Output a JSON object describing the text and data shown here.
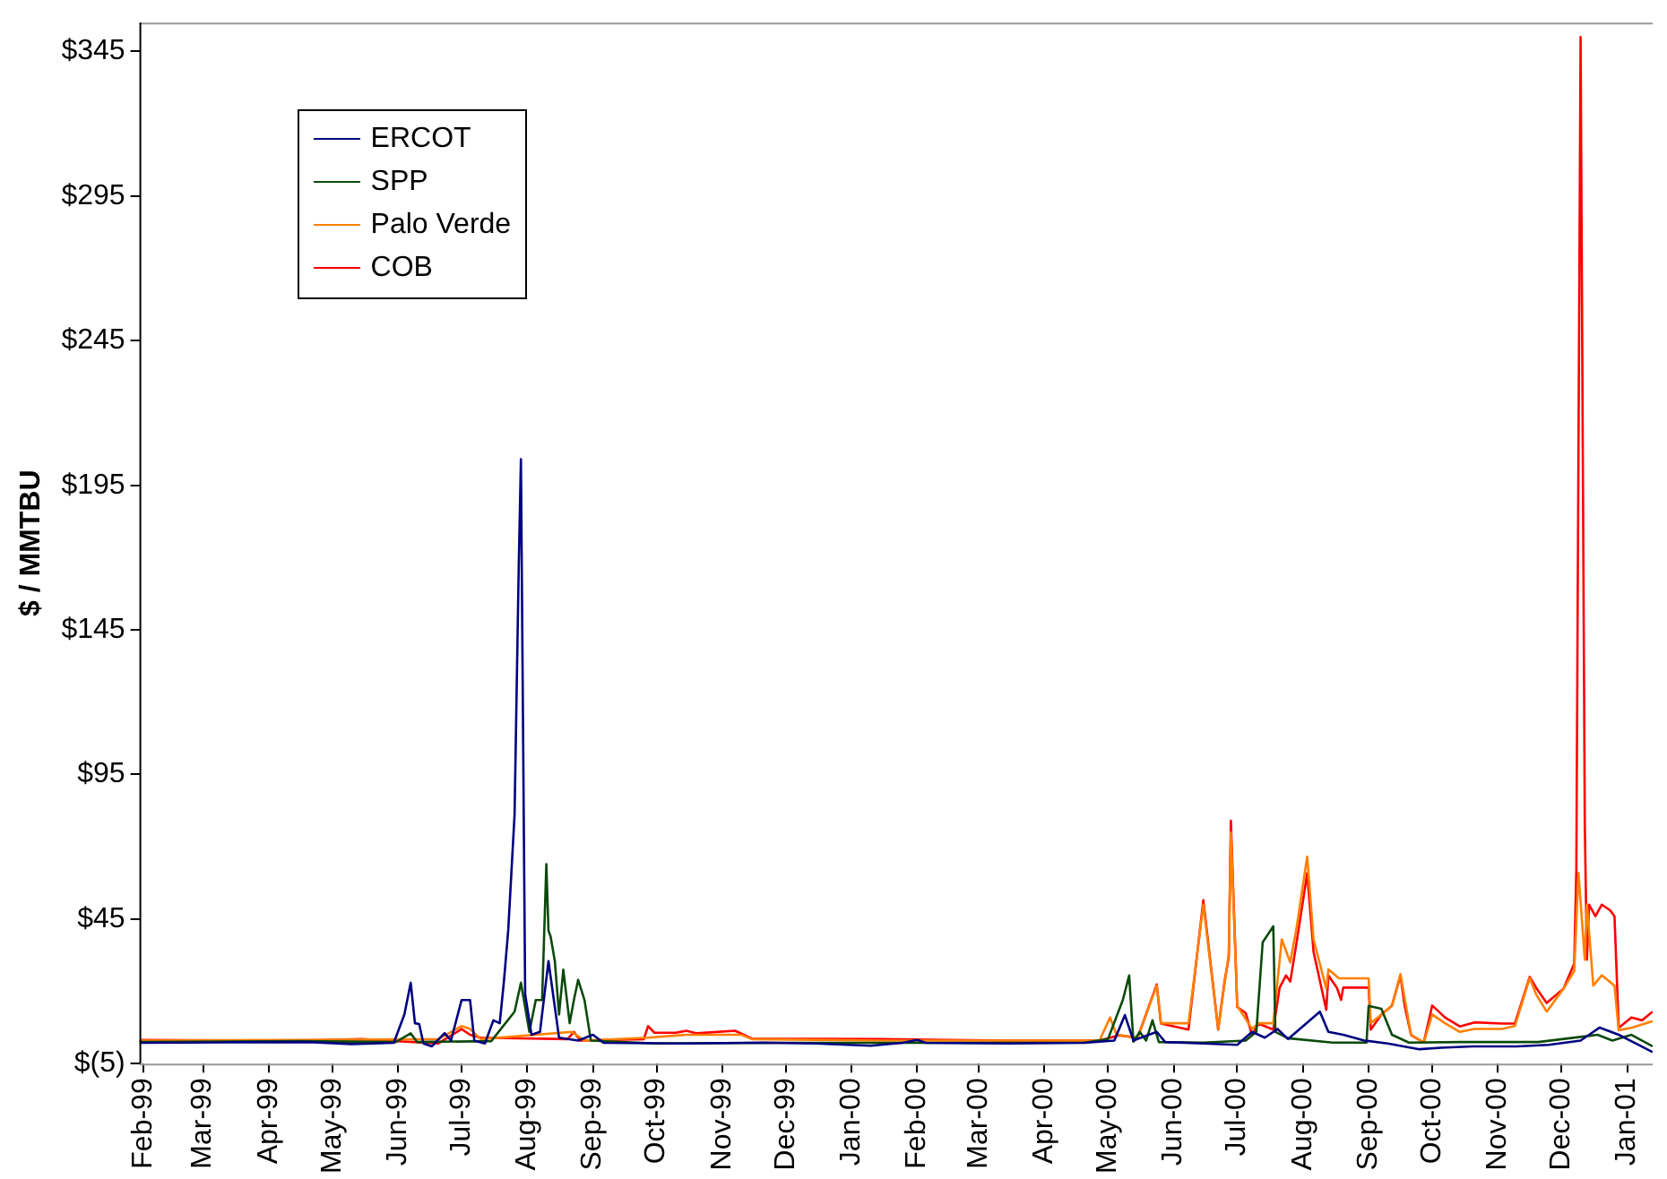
{
  "chart_data": {
    "type": "line",
    "ylabel": "$ / MMTBU",
    "legend": "top left",
    "grid": false,
    "marker": "none",
    "line_style": "solid",
    "xlim": [
      "1999-01-30",
      "2001-01-13"
    ],
    "xticks": [
      {
        "value": "1999-02-01",
        "label": "Feb-99"
      },
      {
        "value": "1999-03-01",
        "label": "Mar-99"
      },
      {
        "value": "1999-04-01",
        "label": "Apr-99"
      },
      {
        "value": "1999-05-01",
        "label": "May-99"
      },
      {
        "value": "1999-06-01",
        "label": "Jun-99"
      },
      {
        "value": "1999-07-01",
        "label": "Jul-99"
      },
      {
        "value": "1999-08-01",
        "label": "Aug-99"
      },
      {
        "value": "1999-09-01",
        "label": "Sep-99"
      },
      {
        "value": "1999-10-01",
        "label": "Oct-99"
      },
      {
        "value": "1999-11-01",
        "label": "Nov-99"
      },
      {
        "value": "1999-12-01",
        "label": "Dec-99"
      },
      {
        "value": "2000-01-01",
        "label": "Jan-00"
      },
      {
        "value": "2000-02-01",
        "label": "Feb-00"
      },
      {
        "value": "2000-03-01",
        "label": "Mar-00"
      },
      {
        "value": "2000-04-01",
        "label": "Apr-00"
      },
      {
        "value": "2000-05-01",
        "label": "May-00"
      },
      {
        "value": "2000-06-01",
        "label": "Jun-00"
      },
      {
        "value": "2000-07-01",
        "label": "Jul-00"
      },
      {
        "value": "2000-08-01",
        "label": "Aug-00"
      },
      {
        "value": "2000-09-01",
        "label": "Sep-00"
      },
      {
        "value": "2000-10-01",
        "label": "Oct-00"
      },
      {
        "value": "2000-11-01",
        "label": "Nov-00"
      },
      {
        "value": "2000-12-01",
        "label": "Dec-00"
      },
      {
        "value": "2001-01-01",
        "label": "Jan-01"
      }
    ],
    "ylim": [
      -5,
      355
    ],
    "yticks": [
      {
        "value": -5,
        "label": "$(5)"
      },
      {
        "value": 45,
        "label": "$45"
      },
      {
        "value": 95,
        "label": "$95"
      },
      {
        "value": 145,
        "label": "$145"
      },
      {
        "value": 195,
        "label": "$195"
      },
      {
        "value": 245,
        "label": "$245"
      },
      {
        "value": 295,
        "label": "$295"
      },
      {
        "value": 345,
        "label": "$345"
      }
    ],
    "series": [
      {
        "name": "ERCOT",
        "color": "#000080",
        "x": [
          "1999-01-30",
          "1999-03-15",
          "1999-04-20",
          "1999-05-10",
          "1999-05-30",
          "1999-06-04",
          "1999-06-07",
          "1999-06-09",
          "1999-06-11",
          "1999-06-13",
          "1999-06-17",
          "1999-06-23",
          "1999-06-26",
          "1999-07-01",
          "1999-07-05",
          "1999-07-07",
          "1999-07-12",
          "1999-07-16",
          "1999-07-19",
          "1999-07-21",
          "1999-07-23",
          "1999-07-26",
          "1999-07-28",
          "1999-07-29",
          "1999-07-31",
          "1999-08-03",
          "1999-08-07",
          "1999-08-11",
          "1999-08-16",
          "1999-08-25",
          "1999-09-01",
          "1999-09-06",
          "1999-10-15",
          "1999-11-20",
          "1999-12-15",
          "2000-01-10",
          "2000-01-25",
          "2000-02-01",
          "2000-02-05",
          "2000-03-15",
          "2000-04-20",
          "2000-05-04",
          "2000-05-09",
          "2000-05-13",
          "2000-05-24",
          "2000-05-28",
          "2000-06-15",
          "2000-07-01",
          "2000-07-08",
          "2000-07-14",
          "2000-07-20",
          "2000-07-25",
          "2000-08-09",
          "2000-08-13",
          "2000-08-20",
          "2000-08-30",
          "2000-09-10",
          "2000-09-25",
          "2000-10-05",
          "2000-10-20",
          "2000-11-10",
          "2000-11-25",
          "2000-12-10",
          "2000-12-19",
          "2000-12-28",
          "2001-01-05",
          "2001-01-13"
        ],
        "values": [
          2.2,
          2.4,
          2.5,
          1.8,
          2.2,
          12,
          23,
          9,
          8.7,
          2,
          1,
          5.6,
          3,
          17,
          17,
          3,
          2,
          10,
          9,
          23.6,
          41,
          81,
          168,
          204,
          19,
          5,
          6,
          30.5,
          4,
          3,
          5,
          2.2,
          2,
          2.3,
          2,
          1.2,
          2.2,
          3.2,
          2.2,
          2,
          2.2,
          3,
          11.8,
          3,
          6,
          2.5,
          2,
          1.5,
          6,
          4,
          7,
          3.5,
          13,
          6,
          5,
          3,
          2,
          0,
          0.5,
          1,
          1,
          1.5,
          3,
          7.5,
          5,
          2,
          -1
        ]
      },
      {
        "name": "SPP",
        "color": "#0b4a0b",
        "x": [
          "1999-01-30",
          "1999-04-15",
          "1999-05-31",
          "1999-06-07",
          "1999-06-10",
          "1999-07-15",
          "1999-07-26",
          "1999-07-29",
          "1999-08-02",
          "1999-08-05",
          "1999-08-08",
          "1999-08-10",
          "1999-08-11",
          "1999-08-12",
          "1999-08-14",
          "1999-08-16",
          "1999-08-18",
          "1999-08-21",
          "1999-08-23",
          "1999-08-25",
          "1999-08-28",
          "1999-08-31",
          "1999-10-01",
          "1999-12-01",
          "2000-02-01",
          "2000-04-20",
          "2000-05-01",
          "2000-05-08",
          "2000-05-11",
          "2000-05-13",
          "2000-05-16",
          "2000-05-19",
          "2000-05-22",
          "2000-05-25",
          "2000-06-15",
          "2000-07-05",
          "2000-07-10",
          "2000-07-13",
          "2000-07-18",
          "2000-07-19",
          "2000-07-25",
          "2000-08-15",
          "2000-08-31",
          "2000-09-01",
          "2000-09-07",
          "2000-09-12",
          "2000-09-20",
          "2000-10-15",
          "2000-11-20",
          "2000-12-18",
          "2000-12-25",
          "2001-01-03",
          "2001-01-13"
        ],
        "values": [
          2.5,
          2.8,
          2.5,
          5.5,
          2.5,
          2.8,
          13,
          23,
          6,
          17,
          17,
          64,
          41,
          39,
          30.5,
          12,
          27.5,
          9,
          17,
          24,
          17,
          3,
          2,
          2.2,
          2.2,
          2.3,
          3.5,
          17,
          25.5,
          2.6,
          6,
          3,
          10,
          2.5,
          2.3,
          3,
          6,
          37,
          42.5,
          6,
          3.8,
          2.3,
          2.3,
          15,
          14,
          5,
          2.3,
          2.5,
          2.5,
          5,
          3,
          5,
          1
        ]
      },
      {
        "name": "Palo Verde",
        "color": "#ff8000",
        "x": [
          "1999-01-30",
          "1999-04-15",
          "1999-06-20",
          "1999-07-01",
          "1999-07-05",
          "1999-07-10",
          "1999-08-22",
          "1999-08-28",
          "1999-09-27",
          "1999-10-15",
          "1999-11-10",
          "1999-11-15",
          "2000-01-15",
          "2000-04-15",
          "2000-04-27",
          "2000-05-02",
          "2000-05-05",
          "2000-05-15",
          "2000-05-24",
          "2000-05-26",
          "2000-06-08",
          "2000-06-15",
          "2000-06-22",
          "2000-06-27",
          "2000-06-28",
          "2000-07-01",
          "2000-07-08",
          "2000-07-11",
          "2000-07-18",
          "2000-07-22",
          "2000-07-26",
          "2000-07-29",
          "2000-08-03",
          "2000-08-06",
          "2000-08-12",
          "2000-08-13",
          "2000-08-18",
          "2000-09-01",
          "2000-09-02",
          "2000-09-07",
          "2000-09-12",
          "2000-09-16",
          "2000-09-21",
          "2000-09-27",
          "2000-10-01",
          "2000-10-07",
          "2000-10-14",
          "2000-10-21",
          "2000-11-03",
          "2000-11-09",
          "2000-11-16",
          "2000-11-19",
          "2000-11-24",
          "2000-12-02",
          "2000-12-07",
          "2000-12-09",
          "2000-12-12",
          "2000-12-13",
          "2000-12-16",
          "2000-12-20",
          "2000-12-26",
          "2000-12-28",
          "2001-01-03",
          "2001-01-13"
        ],
        "values": [
          3,
          3.2,
          3.5,
          8,
          7,
          3.5,
          6,
          3,
          4,
          5,
          5,
          3.5,
          3,
          3,
          3,
          11,
          5,
          4,
          22,
          9,
          9,
          50,
          7,
          33,
          75,
          15,
          7,
          9,
          9,
          38,
          30,
          42,
          66.6,
          38,
          21,
          27.6,
          24.5,
          24.5,
          9,
          12,
          15,
          26,
          5,
          2.3,
          12,
          9,
          6,
          7,
          7,
          8,
          24.6,
          19,
          13,
          21,
          27,
          61,
          31,
          50,
          22,
          25.6,
          22,
          6.6,
          7.4,
          9.7
        ]
      },
      {
        "name": "COB",
        "color": "#ff0000",
        "x": [
          "1999-01-30",
          "1999-04-15",
          "1999-05-15",
          "1999-06-20",
          "1999-07-01",
          "1999-07-05",
          "1999-07-10",
          "1999-08-20",
          "1999-08-23",
          "1999-08-26",
          "1999-09-25",
          "1999-09-27",
          "1999-09-30",
          "1999-10-10",
          "1999-10-15",
          "1999-10-20",
          "1999-11-07",
          "1999-11-15",
          "2000-01-15",
          "2000-03-15",
          "2000-04-27",
          "2000-05-06",
          "2000-05-15",
          "2000-05-24",
          "2000-05-26",
          "2000-06-08",
          "2000-06-15",
          "2000-06-22",
          "2000-06-25",
          "2000-06-27",
          "2000-06-28",
          "2000-07-01",
          "2000-07-05",
          "2000-07-08",
          "2000-07-11",
          "2000-07-18",
          "2000-07-21",
          "2000-07-24",
          "2000-07-26",
          "2000-07-29",
          "2000-08-03",
          "2000-08-06",
          "2000-08-12",
          "2000-08-13",
          "2000-08-17",
          "2000-08-19",
          "2000-08-20",
          "2000-09-01",
          "2000-09-02",
          "2000-09-07",
          "2000-09-12",
          "2000-09-16",
          "2000-09-18",
          "2000-09-21",
          "2000-09-27",
          "2000-10-01",
          "2000-10-07",
          "2000-10-14",
          "2000-10-21",
          "2000-11-03",
          "2000-11-09",
          "2000-11-16",
          "2000-11-19",
          "2000-11-24",
          "2000-12-02",
          "2000-12-07",
          "2000-12-08",
          "2000-12-10",
          "2000-12-12",
          "2000-12-13",
          "2000-12-14",
          "2000-12-17",
          "2000-12-20",
          "2000-12-24",
          "2000-12-26",
          "2000-12-28",
          "2001-01-03",
          "2001-01-08",
          "2001-01-13"
        ],
        "values": [
          3.2,
          3,
          3.5,
          2,
          7,
          5,
          4,
          3.5,
          6,
          3,
          3.5,
          8,
          5.7,
          5.7,
          6.4,
          5.5,
          6.4,
          3.7,
          3.5,
          3,
          3,
          4.8,
          4,
          22.4,
          8.9,
          6.8,
          51.5,
          6.8,
          23.4,
          31.8,
          79,
          14.6,
          12.5,
          4.9,
          8.9,
          6.8,
          21.3,
          25.5,
          23.4,
          36.9,
          60.8,
          33.7,
          13.6,
          25.5,
          21.3,
          17.1,
          21.3,
          21.3,
          6.8,
          12,
          15.1,
          25.5,
          15,
          4.9,
          2.3,
          15.1,
          11,
          7.9,
          9.3,
          8.9,
          8.9,
          25,
          21.3,
          16,
          21,
          29.6,
          62,
          350,
          77,
          31,
          50,
          46,
          50,
          48,
          46,
          7.4,
          11,
          10,
          13
        ]
      }
    ]
  }
}
